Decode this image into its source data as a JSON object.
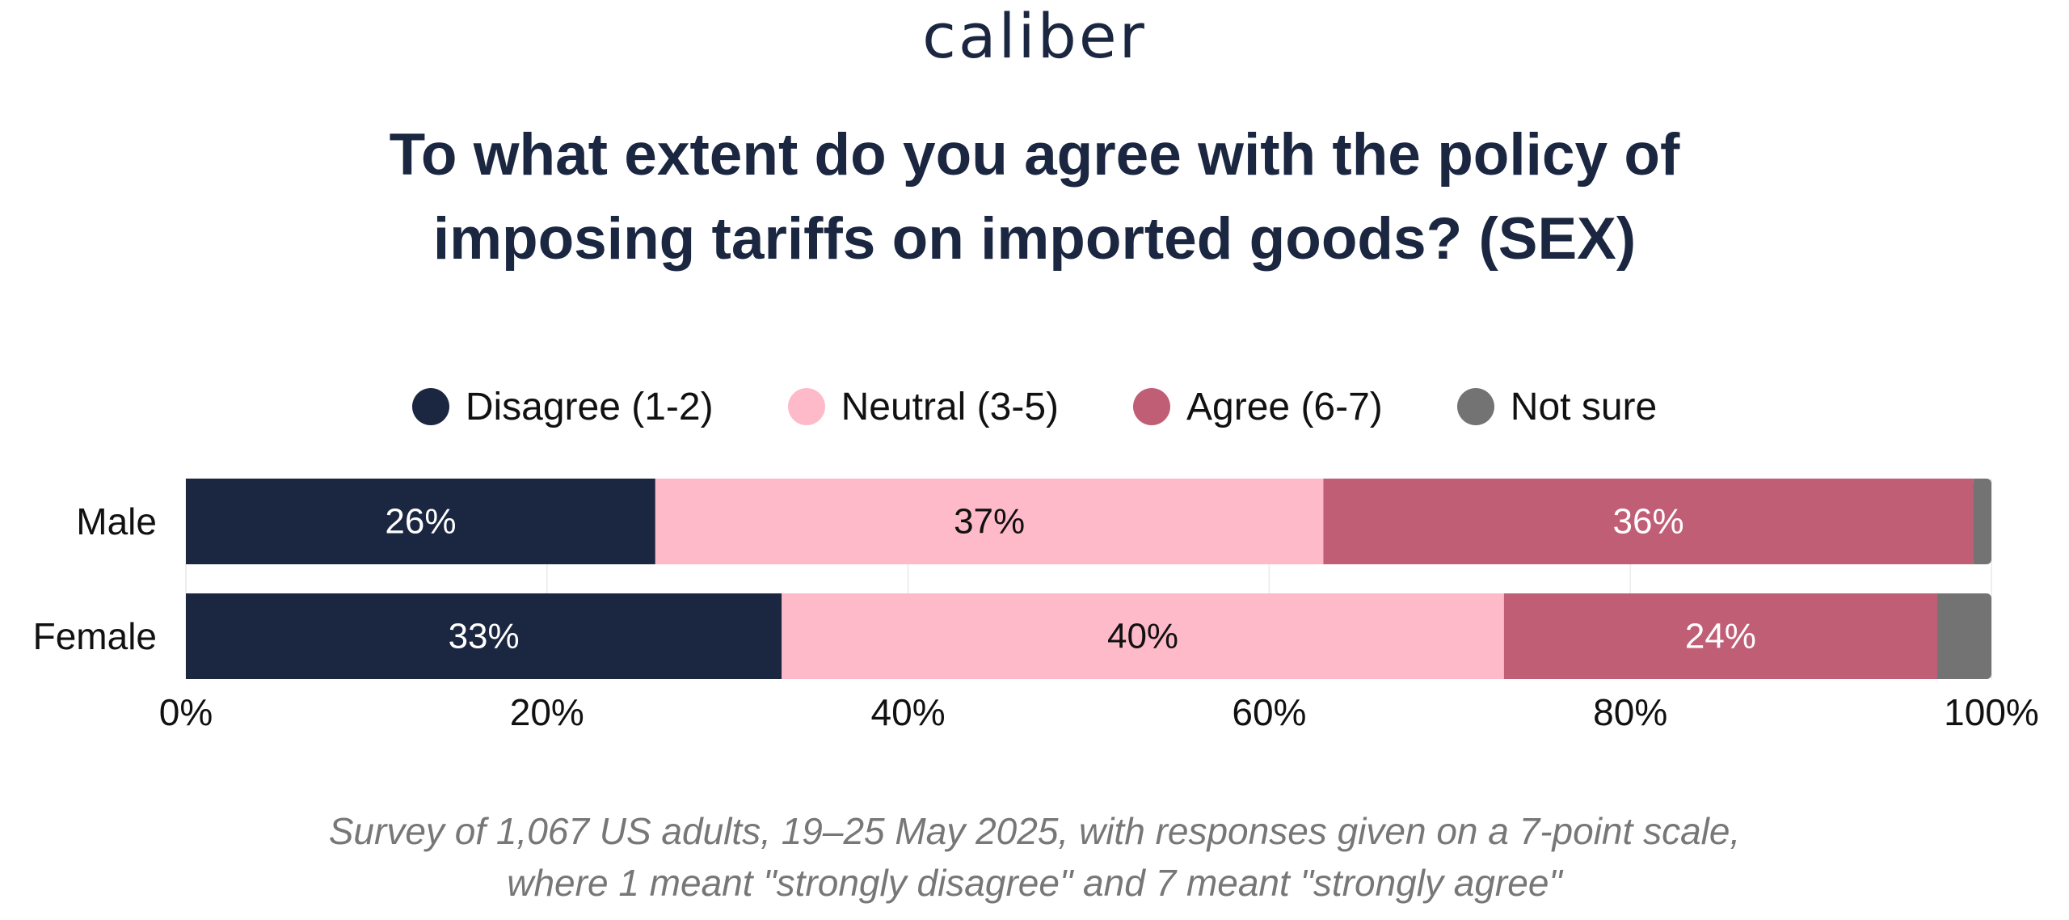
{
  "logo": {
    "text": "caliber"
  },
  "title": {
    "line1": "To what extent do you agree with the policy of",
    "line2": "imposing tariffs on imported goods? (SEX)"
  },
  "legend": [
    {
      "label": "Disagree (1-2)",
      "color": "#1b2740"
    },
    {
      "label": "Neutral (3-5)",
      "color": "#ffbaca"
    },
    {
      "label": "Agree (6-7)",
      "color": "#c05e76"
    },
    {
      "label": "Not sure",
      "color": "#737373"
    }
  ],
  "chart_data": {
    "type": "bar",
    "orientation": "horizontal",
    "stacked": true,
    "categories": [
      "Male",
      "Female"
    ],
    "series": [
      {
        "name": "Disagree (1-2)",
        "color": "#1b2740",
        "label_color": "#ffffff",
        "values": [
          26,
          33
        ],
        "labels": [
          "26%",
          "33%"
        ]
      },
      {
        "name": "Neutral (3-5)",
        "color": "#ffbaca",
        "label_color": "#111111",
        "values": [
          37,
          40
        ],
        "labels": [
          "37%",
          "40%"
        ]
      },
      {
        "name": "Agree (6-7)",
        "color": "#c05e76",
        "label_color": "#ffffff",
        "values": [
          36,
          24
        ],
        "labels": [
          "36%",
          "24%"
        ]
      },
      {
        "name": "Not sure",
        "color": "#737373",
        "label_color": "#ffffff",
        "values": [
          1,
          3
        ],
        "labels": [
          "",
          ""
        ]
      }
    ],
    "xlim": [
      0,
      100
    ],
    "xticks": [
      "0%",
      "20%",
      "40%",
      "60%",
      "80%",
      "100%"
    ],
    "grid": true,
    "legend_position": "top"
  },
  "footnote": {
    "line1": "Survey of 1,067 US adults, 19–25 May 2025, with responses given on a 7-point scale,",
    "line2": "where 1 meant \"strongly disagree\" and 7 meant \"strongly agree\""
  }
}
